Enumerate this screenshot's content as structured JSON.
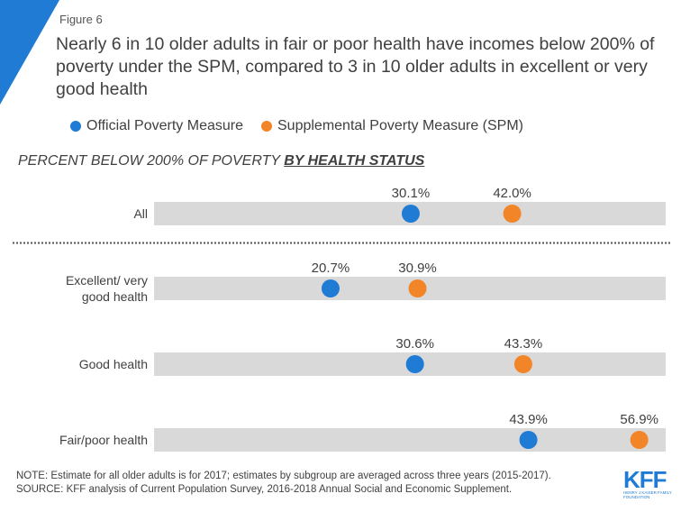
{
  "figure_label": "Figure 6",
  "title": "Nearly 6 in 10 older adults in fair or poor health have incomes below 200% of poverty under the SPM, compared to 3 in 10 older adults in excellent or very good health",
  "subtitle_prefix": "PERCENT BELOW 200% OF POVERTY ",
  "subtitle_emphasis": "BY HEALTH STATUS",
  "note": "NOTE: Estimate for all older adults is for 2017; estimates by subgroup are averaged across three years (2015-2017).",
  "source": "SOURCE: KFF analysis of Current Population Survey,  2016-2018 Annual Social and Economic Supplement.",
  "logo": {
    "text": "KFF",
    "subtext": "HENRY J KAISER FAMILY FOUNDATION"
  },
  "colors": {
    "accent": "#1f7bd4",
    "official": "#1f7bd4",
    "spm": "#f28527",
    "band": "#d9d9d9"
  },
  "chart_data": {
    "type": "dot",
    "title": "PERCENT BELOW 200% OF POVERTY BY HEALTH STATUS",
    "categories": [
      "All",
      "Excellent/ very good health",
      "Good health",
      "Fair/poor health"
    ],
    "series": [
      {
        "name": "Official Poverty Measure",
        "values": [
          30.1,
          20.7,
          30.6,
          43.9
        ],
        "labels": [
          "30.1%",
          "20.7%",
          "30.6%",
          "43.9%"
        ]
      },
      {
        "name": "Supplemental Poverty Measure (SPM)",
        "values": [
          42.0,
          30.9,
          43.3,
          56.9
        ],
        "labels": [
          "42.0%",
          "30.9%",
          "43.3%",
          "56.9%"
        ]
      }
    ],
    "xlim": [
      0,
      60
    ],
    "legend": "top",
    "grid": false,
    "separator_after_category": "All"
  }
}
